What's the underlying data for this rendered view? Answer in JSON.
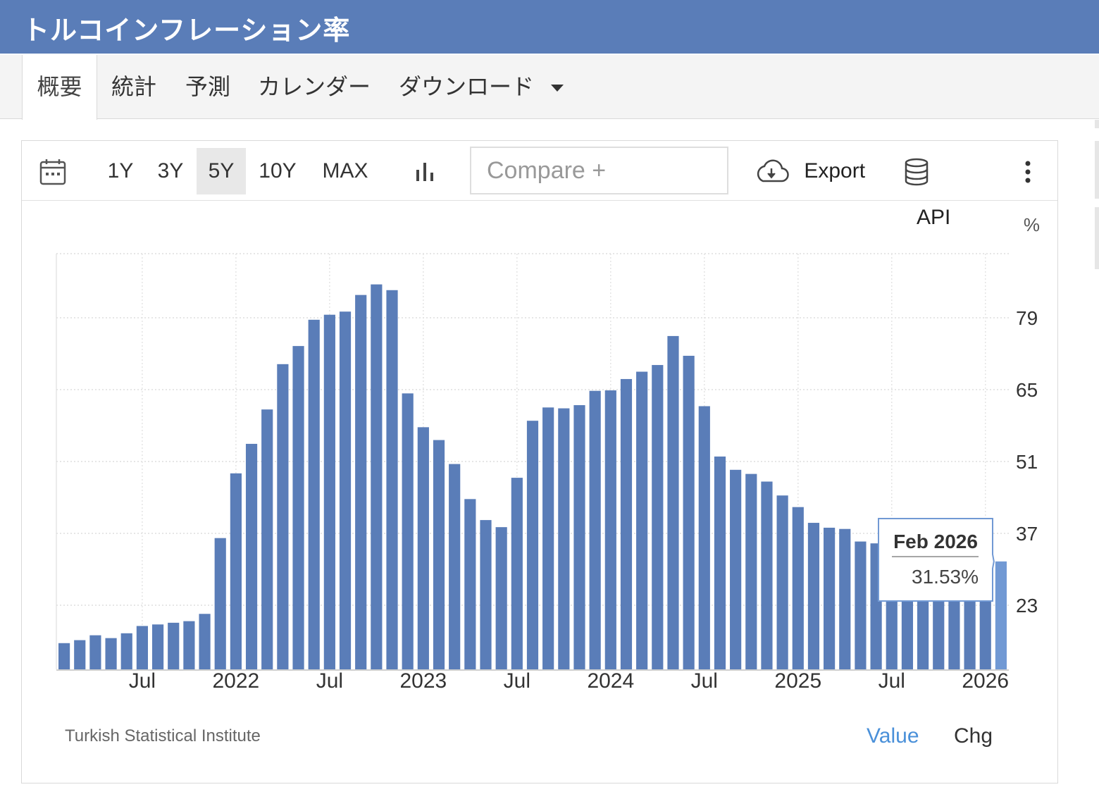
{
  "page": {
    "title": "トルコインフレーション率"
  },
  "tabs": [
    {
      "label": "概要",
      "active": true
    },
    {
      "label": "統計"
    },
    {
      "label": "予測"
    },
    {
      "label": "カレンダー"
    },
    {
      "label": "ダウンロード"
    }
  ],
  "toolbar": {
    "ranges": [
      "1Y",
      "3Y",
      "5Y",
      "10Y",
      "MAX"
    ],
    "selected_range": "5Y",
    "compare_placeholder": "Compare +",
    "export_label": "Export",
    "api_label": "API",
    "icons": [
      "calendar-icon",
      "bar-chart-icon",
      "cloud-download-icon",
      "database-icon",
      "more-vertical-icon"
    ]
  },
  "chart_data": {
    "type": "bar",
    "unit": "%",
    "color": "#5a7db8",
    "highlight_color": "#7199d4",
    "x_tick_labels": [
      "Jul",
      "2022",
      "Jul",
      "2023",
      "Jul",
      "2024",
      "Jul",
      "2025",
      "Jul",
      "2026"
    ],
    "y_tick_labels": [
      "23",
      "37",
      "51",
      "65",
      "79"
    ],
    "ylim": [
      10.5,
      91.5
    ],
    "grid": true,
    "categories": [
      "2021-02",
      "2021-03",
      "2021-04",
      "2021-05",
      "2021-06",
      "2021-07",
      "2021-08",
      "2021-09",
      "2021-10",
      "2021-11",
      "2021-12",
      "2022-01",
      "2022-02",
      "2022-03",
      "2022-04",
      "2022-05",
      "2022-06",
      "2022-07",
      "2022-08",
      "2022-09",
      "2022-10",
      "2022-11",
      "2022-12",
      "2023-01",
      "2023-02",
      "2023-03",
      "2023-04",
      "2023-05",
      "2023-06",
      "2023-07",
      "2023-08",
      "2023-09",
      "2023-10",
      "2023-11",
      "2023-12",
      "2024-01",
      "2024-02",
      "2024-03",
      "2024-04",
      "2024-05",
      "2024-06",
      "2024-07",
      "2024-08",
      "2024-09",
      "2024-10",
      "2024-11",
      "2024-12",
      "2025-01",
      "2025-02",
      "2025-03",
      "2025-04",
      "2025-05",
      "2025-06",
      "2025-07",
      "2025-08",
      "2025-09",
      "2025-10",
      "2025-11",
      "2025-12",
      "2026-01",
      "2026-02"
    ],
    "values": [
      15.61,
      16.19,
      17.14,
      16.59,
      17.53,
      18.95,
      19.25,
      19.58,
      19.89,
      21.31,
      36.08,
      48.69,
      54.44,
      61.14,
      69.97,
      73.5,
      78.62,
      79.6,
      80.21,
      83.45,
      85.51,
      84.39,
      64.27,
      57.68,
      55.18,
      50.51,
      43.68,
      39.59,
      38.21,
      47.83,
      58.94,
      61.53,
      61.36,
      61.98,
      64.77,
      64.86,
      67.07,
      68.5,
      69.8,
      75.45,
      71.6,
      61.78,
      51.97,
      49.38,
      48.58,
      47.09,
      44.38,
      42.12,
      39.05,
      38.1,
      37.86,
      35.41,
      35.05,
      33.52,
      32.95,
      33.29,
      32.87,
      31.07,
      30.89,
      30.65,
      31.53
    ],
    "tooltip": {
      "date": "Feb 2026",
      "value": "31.53%"
    },
    "source": "Turkish Statistical Institute",
    "modes": [
      "Value",
      "Chg"
    ],
    "active_mode": "Value"
  }
}
